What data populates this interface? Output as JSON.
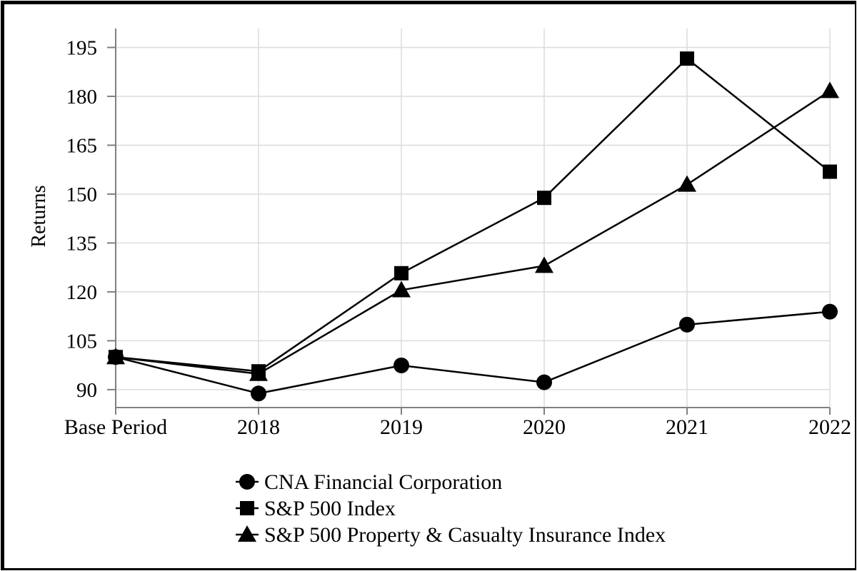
{
  "chart_data": {
    "type": "line",
    "title": "",
    "ylabel": "Returns",
    "xlabel": "",
    "categories": [
      "Base Period",
      "2018",
      "2019",
      "2020",
      "2021",
      "2022"
    ],
    "series": [
      {
        "name": "CNA Financial Corporation",
        "marker": "circle",
        "values": [
          100.0,
          88.82,
          97.43,
          92.25,
          109.94,
          113.92
        ]
      },
      {
        "name": "S&P 500 Index",
        "marker": "square",
        "values": [
          100.0,
          95.62,
          125.72,
          148.85,
          191.58,
          156.88
        ]
      },
      {
        "name": "S&P 500 Property & Casualty Insurance Index",
        "marker": "triangle",
        "values": [
          100.0,
          94.84,
          120.54,
          128.0,
          152.92,
          181.66
        ]
      }
    ],
    "yticks": [
      90,
      105,
      120,
      135,
      150,
      165,
      180,
      195
    ],
    "ylim": [
      84.5,
      200.8
    ],
    "grid": true,
    "legend_position": "bottom-left",
    "colors": {
      "line": "#000000",
      "marker": "#000000",
      "grid": "#dcdcdc",
      "axis": "#808080",
      "text": "#000000",
      "background": "#ffffff"
    }
  }
}
